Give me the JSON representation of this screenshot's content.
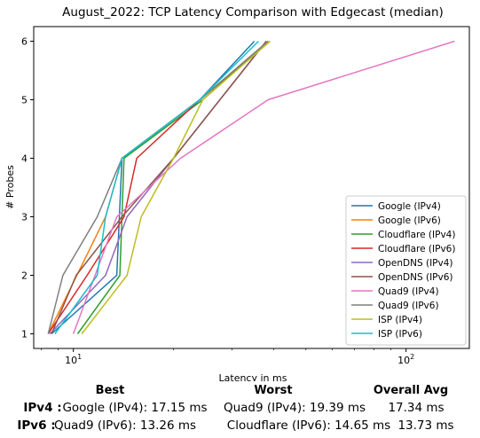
{
  "chart_data": {
    "type": "line",
    "title": "August_2022: TCP Latency Comparison with Edgecast (median)",
    "xlabel": "Latency in ms",
    "ylabel": "# Probes",
    "xscale": "log",
    "xlim": [
      7.6,
      155
    ],
    "ylim": [
      0.75,
      6.25
    ],
    "xticks": [
      {
        "value": 10,
        "label": "10^1"
      },
      {
        "value": 100,
        "label": "10^2"
      }
    ],
    "yticks": [
      1,
      2,
      3,
      4,
      5,
      6
    ],
    "legend_position": "lower right",
    "grid": false,
    "series": [
      {
        "name": "Google (IPv4)",
        "color": "#1f77b4",
        "x": [
          8.6,
          13.5,
          14.0,
          24.0,
          35.0
        ],
        "y": [
          1,
          2,
          4,
          5,
          6
        ]
      },
      {
        "name": "Google (IPv6)",
        "color": "#ff7f0e",
        "x": [
          8.4,
          12.5,
          14.0,
          24.0,
          39.0
        ],
        "y": [
          1,
          3,
          4,
          5,
          6
        ]
      },
      {
        "name": "Cloudflare (IPv4)",
        "color": "#2ca02c",
        "x": [
          10.3,
          13.8,
          14.2,
          24.5,
          38.5
        ],
        "y": [
          1,
          2,
          4,
          5,
          6
        ]
      },
      {
        "name": "Cloudflare (IPv6)",
        "color": "#d62728",
        "x": [
          8.4,
          11.0,
          14.2,
          15.5,
          24.0,
          38.5
        ],
        "y": [
          1,
          2,
          3,
          4,
          5,
          6
        ]
      },
      {
        "name": "OpenDNS (IPv4)",
        "color": "#9467bd",
        "x": [
          8.5,
          12.5,
          14.5,
          20.0,
          38.0
        ],
        "y": [
          1,
          2,
          3,
          4,
          6
        ]
      },
      {
        "name": "OpenDNS (IPv6)",
        "color": "#8c564b",
        "x": [
          8.6,
          10.2,
          14.0,
          20.0,
          38.0
        ],
        "y": [
          1,
          2,
          3,
          4,
          6
        ]
      },
      {
        "name": "Quad9 (IPv4)",
        "color": "#e377c2",
        "x": [
          10.0,
          13.5,
          21.0,
          38.5,
          140.0
        ],
        "y": [
          1,
          3,
          4,
          5,
          6
        ]
      },
      {
        "name": "Quad9 (IPv6)",
        "color": "#7f7f7f",
        "x": [
          8.4,
          9.3,
          11.8,
          14.0,
          24.0,
          38.5
        ],
        "y": [
          1,
          2,
          3,
          4,
          5,
          6
        ]
      },
      {
        "name": "ISP (IPv4)",
        "color": "#bcbd22",
        "x": [
          10.6,
          14.5,
          16.0,
          20.0,
          24.5,
          39.0
        ],
        "y": [
          1,
          2,
          3,
          4,
          5,
          6
        ]
      },
      {
        "name": "ISP (IPv6)",
        "color": "#17becf",
        "x": [
          8.8,
          11.8,
          12.5,
          14.0,
          24.0,
          36.0
        ],
        "y": [
          1,
          2,
          3,
          4,
          5,
          6
        ]
      }
    ]
  },
  "summary": {
    "headers": {
      "best": "Best",
      "worst": "Worst",
      "avg": "Overall Avg"
    },
    "rows": [
      {
        "label": "IPv4 :",
        "best": "Google (IPv4): 17.15 ms",
        "worst": "Quad9 (IPv4): 19.39 ms",
        "avg": "17.34 ms"
      },
      {
        "label": "IPv6 :",
        "best": "Quad9 (IPv6): 13.26 ms",
        "worst": "Cloudflare (IPv6): 14.65 ms",
        "avg": "13.73 ms"
      }
    ]
  }
}
